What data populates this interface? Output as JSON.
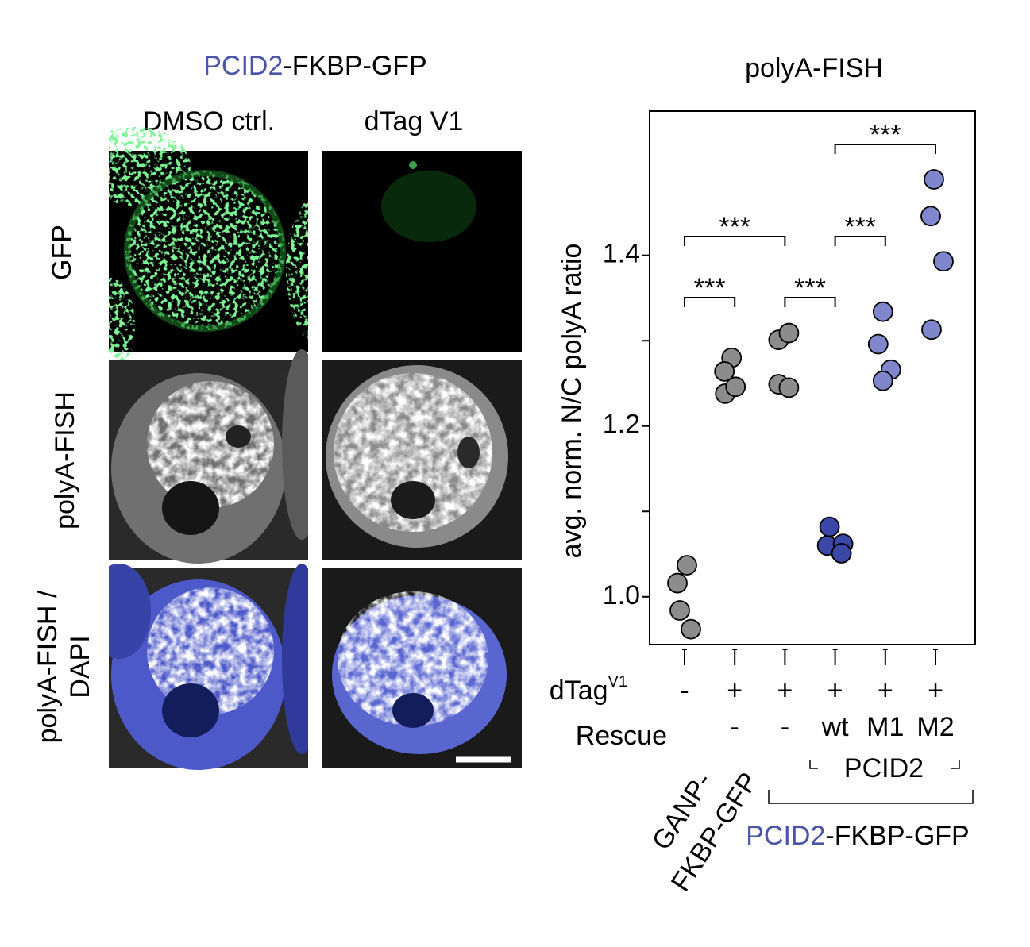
{
  "figure_title": {
    "protein": "PCID2",
    "rest": "-FKBP-GFP"
  },
  "columns": [
    "DMSO ctrl.",
    "dTag V1"
  ],
  "rows": [
    "GFP",
    "polyA-FISH"
  ],
  "row3": {
    "line1": "polyA-FISH /",
    "line2": "DAPI"
  },
  "chart_data": {
    "type": "strip",
    "title": "polyA-FISH",
    "y_label": "avg. norm. N/C polyA ratio",
    "ylim": [
      0.944,
      1.569
    ],
    "yticks": [
      {
        "value": 1.0,
        "label": "1.0"
      },
      {
        "value": 1.2,
        "label": "1.2"
      },
      {
        "value": 1.4,
        "label": "1.4"
      }
    ],
    "yminorticks": [
      1.1,
      1.3
    ],
    "categories": [
      "-",
      "+",
      "+",
      "+",
      "+",
      "+"
    ],
    "rescue": [
      null,
      "-",
      "-",
      "wt",
      "M1",
      "M2"
    ],
    "row_labels": {
      "dtag": "dTag",
      "dtag_sup": "V1",
      "rescue": "Rescue"
    },
    "label_color": "#4a55a8",
    "series": [
      {
        "color": "#8c8c8c",
        "values": [
          1.016,
          1.037,
          0.984,
          0.962
        ]
      },
      {
        "color": "#8c8c8c",
        "values": [
          1.28,
          1.264,
          1.238,
          1.246
        ]
      },
      {
        "color": "#8c8c8c",
        "values": [
          1.301,
          1.309,
          1.249,
          1.245
        ]
      },
      {
        "color": "#3b47a6",
        "values": [
          1.082,
          1.06,
          1.062,
          1.051
        ]
      },
      {
        "color": "#7f86cb",
        "values": [
          1.334,
          1.296,
          1.266,
          1.253
        ]
      },
      {
        "color": "#7f86cb",
        "values": [
          1.489,
          1.446,
          1.393,
          1.313
        ]
      }
    ],
    "significance": [
      {
        "groups": [
          0,
          1
        ],
        "label": "***"
      },
      {
        "groups": [
          0,
          2
        ],
        "label": "***"
      },
      {
        "groups": [
          2,
          3
        ],
        "label": "***"
      },
      {
        "groups": [
          3,
          4
        ],
        "label": "***"
      },
      {
        "groups": [
          3,
          5
        ],
        "label": "***"
      }
    ],
    "group_labels": {
      "pcid2": "PCID2",
      "ganp": "GANP-",
      "fkbp": "FKBP-GFP",
      "ganp_color": "#8fb9dd",
      "pcid2_fkbp": {
        "protein": "PCID2",
        "rest": "-FKBP-GFP"
      }
    }
  }
}
